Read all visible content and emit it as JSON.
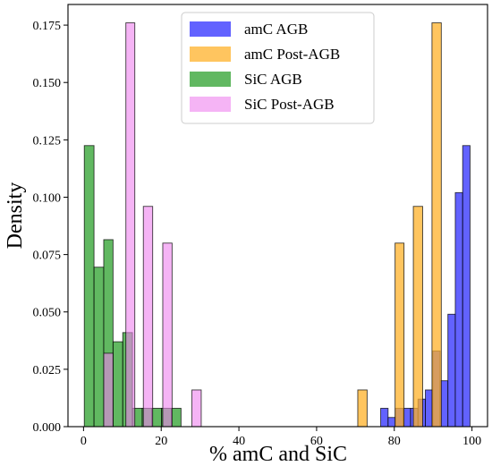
{
  "chart_data": {
    "type": "histogram",
    "xlabel": "% amC and SiC",
    "ylabel": "Density",
    "xlim": [
      -4,
      104
    ],
    "ylim": [
      0,
      0.184
    ],
    "xticks": [
      0,
      20,
      40,
      60,
      80,
      100
    ],
    "yticks": [
      0.0,
      0.025,
      0.05,
      0.075,
      0.1,
      0.125,
      0.15,
      0.175
    ],
    "ytick_labels": [
      "0.000",
      "0.025",
      "0.050",
      "0.075",
      "0.100",
      "0.125",
      "0.150",
      "0.175"
    ],
    "grid": false,
    "legend_position": "top-center",
    "series": [
      {
        "name": "amC AGB",
        "color": "#3b3bff",
        "alpha": 0.8,
        "bins": [
          {
            "x0": 76.5,
            "x1": 78.4,
            "y": 0.008
          },
          {
            "x0": 78.4,
            "x1": 80.3,
            "y": 0.004
          },
          {
            "x0": 80.3,
            "x1": 82.3,
            "y": 0.008
          },
          {
            "x0": 82.3,
            "x1": 84.2,
            "y": 0.008
          },
          {
            "x0": 84.2,
            "x1": 86.1,
            "y": 0.008
          },
          {
            "x0": 86.1,
            "x1": 88.0,
            "y": 0.012
          },
          {
            "x0": 88.0,
            "x1": 89.9,
            "y": 0.016
          },
          {
            "x0": 89.9,
            "x1": 91.8,
            "y": 0.033
          },
          {
            "x0": 91.8,
            "x1": 93.8,
            "y": 0.02
          },
          {
            "x0": 93.8,
            "x1": 95.7,
            "y": 0.049
          },
          {
            "x0": 95.7,
            "x1": 97.6,
            "y": 0.102
          },
          {
            "x0": 97.6,
            "x1": 99.5,
            "y": 0.1225
          }
        ]
      },
      {
        "name": "amC Post-AGB",
        "color": "#ffb22a",
        "alpha": 0.75,
        "bins": [
          {
            "x0": 70.6,
            "x1": 73.0,
            "y": 0.016
          },
          {
            "x0": 75.4,
            "x1": 77.8,
            "y": 0.0
          },
          {
            "x0": 80.2,
            "x1": 82.5,
            "y": 0.08
          },
          {
            "x0": 82.5,
            "x1": 84.9,
            "y": 0.0
          },
          {
            "x0": 84.9,
            "x1": 87.3,
            "y": 0.096
          },
          {
            "x0": 87.3,
            "x1": 89.7,
            "y": 0.0
          },
          {
            "x0": 89.7,
            "x1": 92.1,
            "y": 0.176
          },
          {
            "x0": 92.1,
            "x1": 94.5,
            "y": 0.0
          }
        ]
      },
      {
        "name": "SiC AGB",
        "color": "#2ca02c",
        "alpha": 0.75,
        "bins": [
          {
            "x0": 0.2,
            "x1": 2.7,
            "y": 0.1225
          },
          {
            "x0": 2.7,
            "x1": 5.2,
            "y": 0.0695
          },
          {
            "x0": 5.2,
            "x1": 7.6,
            "y": 0.0815
          },
          {
            "x0": 7.6,
            "x1": 10.1,
            "y": 0.037
          },
          {
            "x0": 10.1,
            "x1": 12.6,
            "y": 0.041
          },
          {
            "x0": 12.6,
            "x1": 15.1,
            "y": 0.008
          },
          {
            "x0": 15.1,
            "x1": 17.6,
            "y": 0.008
          },
          {
            "x0": 17.6,
            "x1": 20.1,
            "y": 0.008
          },
          {
            "x0": 20.1,
            "x1": 22.6,
            "y": 0.008
          },
          {
            "x0": 22.6,
            "x1": 25.1,
            "y": 0.008
          }
        ]
      },
      {
        "name": "SiC Post-AGB",
        "color": "#ee82ee",
        "alpha": 0.6,
        "bins": [
          {
            "x0": 5.2,
            "x1": 7.6,
            "y": 0.032
          },
          {
            "x0": 10.9,
            "x1": 13.2,
            "y": 0.176
          },
          {
            "x0": 15.4,
            "x1": 17.8,
            "y": 0.096
          },
          {
            "x0": 20.4,
            "x1": 22.8,
            "y": 0.08
          },
          {
            "x0": 27.9,
            "x1": 30.3,
            "y": 0.016
          }
        ]
      }
    ]
  }
}
